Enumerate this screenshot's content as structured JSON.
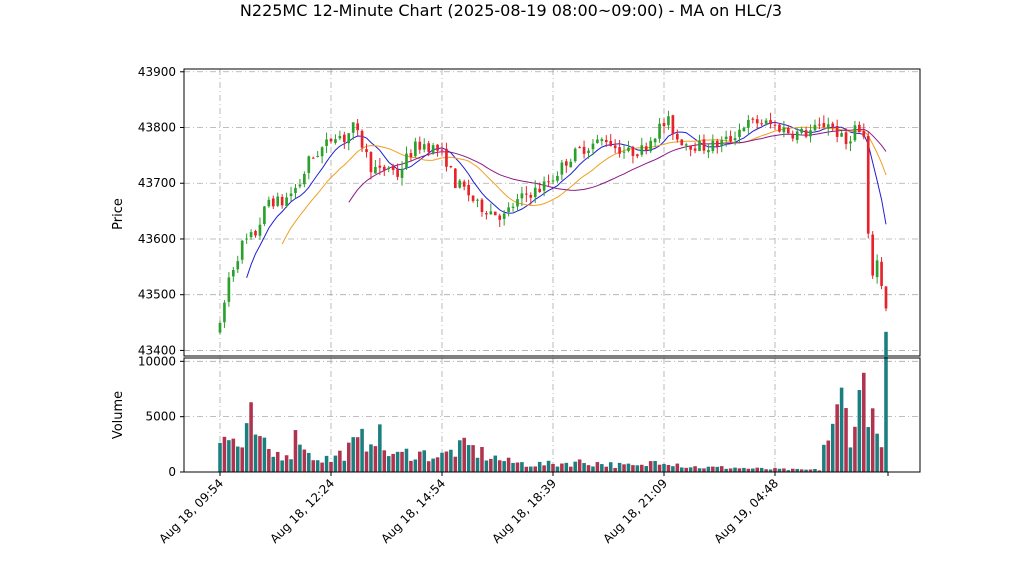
{
  "chart_data": {
    "type": "candlestick",
    "title": "N225MC 12-Minute Chart (2025-08-19 08:00~09:00) - MA on HLC/3",
    "price_axis": {
      "label": "Price",
      "ylim": [
        43390,
        43905
      ],
      "ticks": [
        43400,
        43500,
        43600,
        43700,
        43800,
        43900
      ],
      "tick_labels": [
        "43400",
        "43500",
        "43600",
        "43700",
        "43800",
        "43900"
      ]
    },
    "volume_axis": {
      "label": "Volume",
      "ylim": [
        0,
        10300
      ],
      "ticks": [
        0,
        5000,
        10000
      ],
      "tick_labels": [
        "0",
        "5000",
        "10000"
      ]
    },
    "x_tick_labels": [
      "Aug 18, 09:54",
      "Aug 18, 12:24",
      "Aug 18, 14:54",
      "Aug 18, 18:39",
      "Aug 18, 21:09",
      "Aug 19, 04:48"
    ],
    "x_tick_bar_index": [
      0,
      25,
      50,
      75,
      100,
      125
    ],
    "bar_count": 151,
    "grid": true,
    "colors": {
      "up": "#2ca02c",
      "down": "#e8222a",
      "ma_fast": "#1f1fd6",
      "ma_mid": "#f0a020",
      "ma_slow": "#8a1a8a",
      "vol_a": "#1b7f7f",
      "vol_b": "#b0344f"
    },
    "price_anchors": [
      [
        0,
        43440
      ],
      [
        2,
        43530
      ],
      [
        5,
        43590
      ],
      [
        8,
        43610
      ],
      [
        11,
        43670
      ],
      [
        14,
        43665
      ],
      [
        18,
        43700
      ],
      [
        20,
        43740
      ],
      [
        24,
        43770
      ],
      [
        26,
        43790
      ],
      [
        28,
        43780
      ],
      [
        30,
        43800
      ],
      [
        32,
        43770
      ],
      [
        34,
        43730
      ],
      [
        36,
        43720
      ],
      [
        38,
        43730
      ],
      [
        40,
        43715
      ],
      [
        42,
        43745
      ],
      [
        44,
        43765
      ],
      [
        46,
        43770
      ],
      [
        49,
        43760
      ],
      [
        51,
        43740
      ],
      [
        53,
        43700
      ],
      [
        55,
        43690
      ],
      [
        58,
        43660
      ],
      [
        61,
        43650
      ],
      [
        64,
        43640
      ],
      [
        66,
        43660
      ],
      [
        69,
        43680
      ],
      [
        72,
        43690
      ],
      [
        75,
        43710
      ],
      [
        78,
        43740
      ],
      [
        81,
        43760
      ],
      [
        84,
        43770
      ],
      [
        87,
        43780
      ],
      [
        89,
        43765
      ],
      [
        92,
        43755
      ],
      [
        95,
        43760
      ],
      [
        97,
        43780
      ],
      [
        99,
        43800
      ],
      [
        101,
        43810
      ],
      [
        103,
        43780
      ],
      [
        106,
        43770
      ],
      [
        109,
        43765
      ],
      [
        112,
        43770
      ],
      [
        115,
        43780
      ],
      [
        118,
        43805
      ],
      [
        121,
        43810
      ],
      [
        124,
        43805
      ],
      [
        126,
        43800
      ],
      [
        129,
        43790
      ],
      [
        132,
        43790
      ],
      [
        135,
        43800
      ],
      [
        137,
        43810
      ],
      [
        139,
        43790
      ],
      [
        141,
        43770
      ],
      [
        143,
        43800
      ],
      [
        145,
        43780
      ],
      [
        146,
        43600
      ],
      [
        147,
        43540
      ],
      [
        148,
        43560
      ],
      [
        149,
        43520
      ],
      [
        150,
        43480
      ]
    ],
    "volume_anchors": [
      [
        0,
        2800
      ],
      [
        3,
        2900
      ],
      [
        5,
        2000
      ],
      [
        7,
        4500
      ],
      [
        9,
        2500
      ],
      [
        12,
        1500
      ],
      [
        16,
        2000
      ],
      [
        18,
        3800
      ],
      [
        20,
        1500
      ],
      [
        25,
        1100
      ],
      [
        28,
        1800
      ],
      [
        30,
        2300
      ],
      [
        33,
        3000
      ],
      [
        35,
        4000
      ],
      [
        37,
        2000
      ],
      [
        40,
        1400
      ],
      [
        43,
        1800
      ],
      [
        46,
        1600
      ],
      [
        50,
        1400
      ],
      [
        53,
        2000
      ],
      [
        56,
        2200
      ],
      [
        60,
        1500
      ],
      [
        65,
        900
      ],
      [
        70,
        700
      ],
      [
        75,
        700
      ],
      [
        80,
        900
      ],
      [
        85,
        800
      ],
      [
        90,
        600
      ],
      [
        95,
        500
      ],
      [
        99,
        1200
      ],
      [
        101,
        1000
      ],
      [
        105,
        500
      ],
      [
        110,
        400
      ],
      [
        115,
        400
      ],
      [
        120,
        300
      ],
      [
        125,
        250
      ],
      [
        130,
        200
      ],
      [
        135,
        200
      ],
      [
        136,
        2500
      ],
      [
        138,
        3500
      ],
      [
        140,
        6500
      ],
      [
        142,
        4000
      ],
      [
        144,
        6000
      ],
      [
        145,
        8500
      ],
      [
        146,
        7000
      ],
      [
        147,
        5500
      ],
      [
        148,
        2500
      ],
      [
        149,
        4000
      ],
      [
        150,
        9000
      ]
    ]
  }
}
